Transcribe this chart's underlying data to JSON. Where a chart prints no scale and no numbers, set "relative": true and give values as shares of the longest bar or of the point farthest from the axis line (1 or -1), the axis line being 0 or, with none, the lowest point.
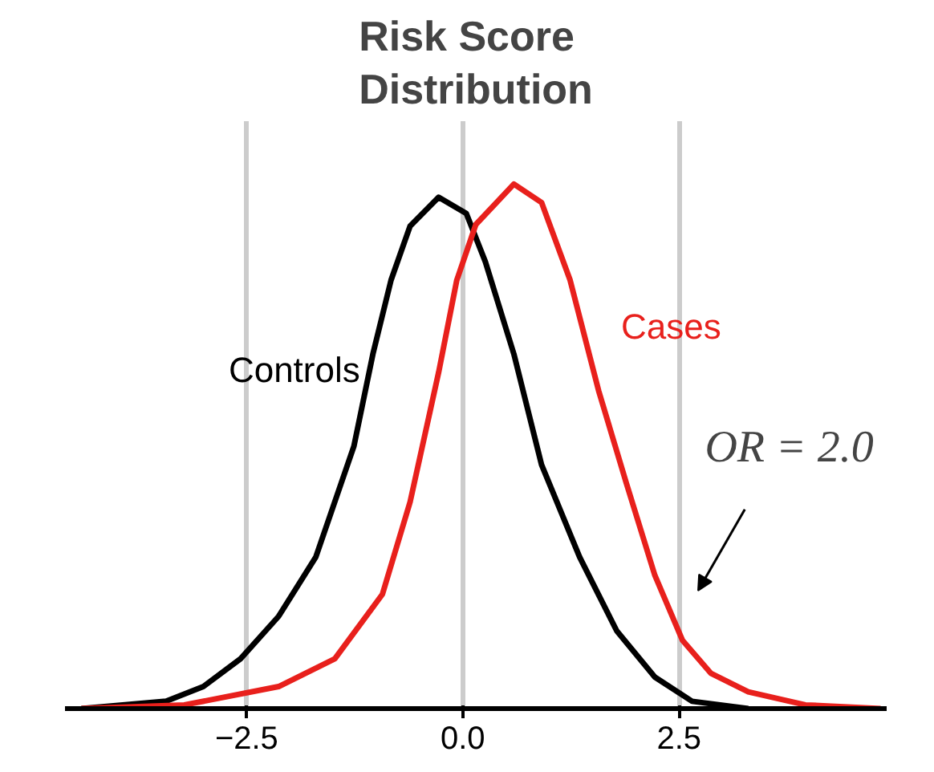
{
  "chart_data": {
    "type": "line",
    "title": "Risk Score\nDistribution",
    "relative": true,
    "xlim": [
      -4.6,
      4.9
    ],
    "xticks": [
      {
        "value": -2.5,
        "label": "−2.5"
      },
      {
        "value": 0,
        "label": "0.0"
      },
      {
        "value": 2.5,
        "label": "2.5"
      }
    ],
    "grid": "x",
    "tick_labels": "x",
    "legend": false,
    "line_style": "solid",
    "series": [
      {
        "name": "Controls",
        "color": "#000000",
        "x": [
          -4.41,
          -3.43,
          -3.0,
          -2.57,
          -2.13,
          -1.7,
          -1.26,
          -1.04,
          -0.83,
          -0.61,
          -0.28,
          0.04,
          0.26,
          0.59,
          0.91,
          1.35,
          1.78,
          2.22,
          2.65,
          3.3
        ],
        "values": [
          0,
          0.014,
          0.042,
          0.095,
          0.176,
          0.289,
          0.5,
          0.676,
          0.817,
          0.92,
          0.975,
          0.944,
          0.852,
          0.676,
          0.465,
          0.289,
          0.148,
          0.06,
          0.014,
          0
        ]
      },
      {
        "name": "Cases",
        "color": "#e8201c",
        "x": [
          -4.41,
          -3.22,
          -2.13,
          -1.48,
          -0.93,
          -0.61,
          -0.28,
          -0.07,
          0.15,
          0.59,
          0.91,
          1.24,
          1.57,
          1.89,
          2.22,
          2.54,
          2.87,
          3.3,
          3.96,
          4.83
        ],
        "values": [
          0,
          0.007,
          0.042,
          0.095,
          0.218,
          0.394,
          0.641,
          0.817,
          0.923,
          1.0,
          0.965,
          0.817,
          0.606,
          0.43,
          0.254,
          0.13,
          0.067,
          0.032,
          0.007,
          0
        ]
      }
    ],
    "annotations": [
      "OR = 2.0"
    ]
  }
}
